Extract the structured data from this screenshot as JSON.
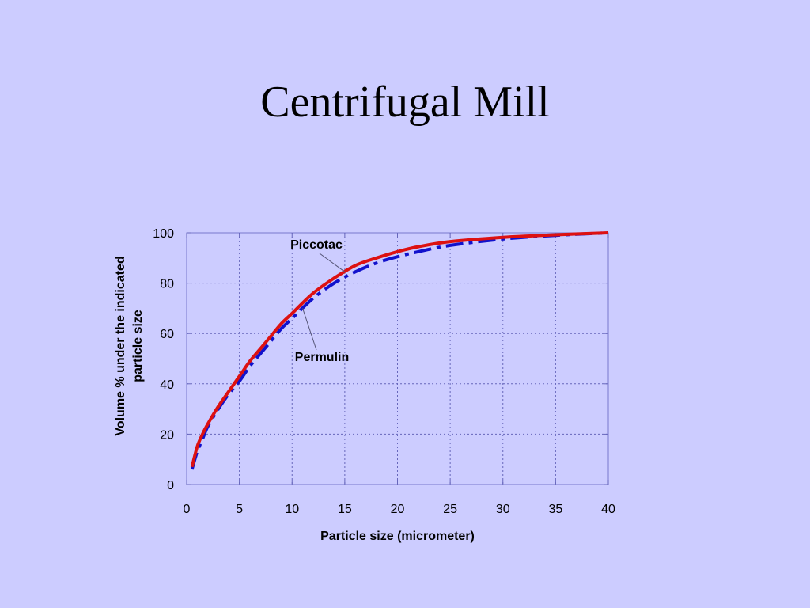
{
  "slide": {
    "title": "Centrifugal Mill"
  },
  "chart_data": {
    "type": "line",
    "title": "",
    "xlabel": "Particle size (micrometer)",
    "ylabel": [
      "Volume % under the indicated",
      "particle size"
    ],
    "xlim": [
      0,
      40
    ],
    "ylim": [
      0,
      100
    ],
    "xticks": [
      0,
      5,
      10,
      15,
      20,
      25,
      30,
      35,
      40
    ],
    "yticks": [
      0,
      20,
      40,
      60,
      80,
      100
    ],
    "grid": true,
    "legend": "none",
    "series": [
      {
        "name": "Piccotac",
        "color": "#dd1111",
        "style": "solid",
        "x": [
          0.5,
          1,
          1.5,
          2,
          3,
          4,
          5,
          6,
          7,
          8,
          9,
          10,
          12,
          14,
          16,
          18,
          20,
          22,
          25,
          30,
          35,
          40
        ],
        "y": [
          7,
          15,
          20,
          24,
          31,
          37,
          43,
          49,
          54,
          59,
          64,
          68,
          76,
          82,
          87,
          90,
          92.5,
          94.5,
          96.5,
          98.2,
          99.2,
          100
        ]
      },
      {
        "name": "Permulin",
        "color": "#1111cc",
        "style": "dashdot",
        "x": [
          0.5,
          1,
          1.5,
          2,
          3,
          4,
          5,
          6,
          7,
          8,
          9,
          10,
          12,
          14,
          16,
          18,
          20,
          22,
          25,
          30,
          35,
          40
        ],
        "y": [
          6,
          13,
          18,
          23,
          30,
          36,
          41,
          47,
          52,
          57,
          62,
          66,
          74,
          80,
          84.5,
          88,
          90.5,
          92.5,
          95,
          97.5,
          99,
          100
        ]
      }
    ],
    "annotations": [
      {
        "text": "Piccotac",
        "series": "Piccotac",
        "at_x": 15
      },
      {
        "text": "Permulin",
        "series": "Permulin",
        "at_x": 11
      }
    ]
  }
}
